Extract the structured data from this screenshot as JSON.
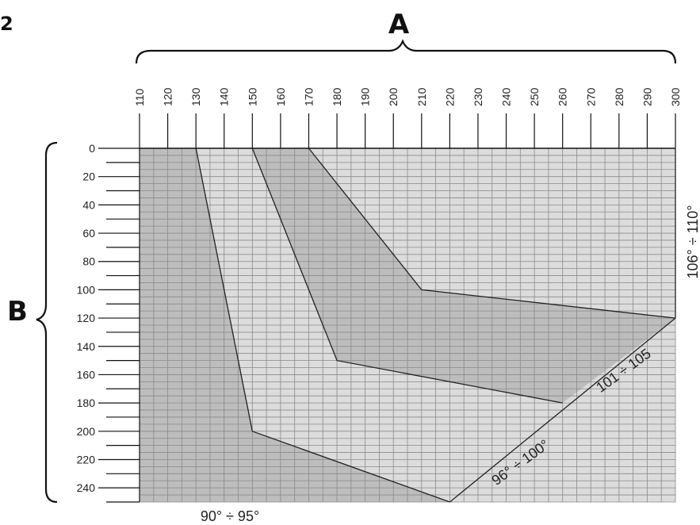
{
  "figure_number": "2",
  "chart_data": {
    "type": "area",
    "x_axis": {
      "letter": "A",
      "ticks": [
        110,
        120,
        130,
        140,
        150,
        160,
        170,
        180,
        190,
        200,
        210,
        220,
        230,
        240,
        250,
        260,
        270,
        280,
        290,
        300
      ],
      "range": [
        110,
        300
      ],
      "position": "top"
    },
    "y_axis": {
      "letter": "B",
      "ticks": [
        0,
        20,
        40,
        60,
        80,
        100,
        120,
        140,
        160,
        180,
        200,
        220,
        240
      ],
      "range": [
        0,
        250
      ],
      "inverted": true,
      "position": "left"
    },
    "grid": true,
    "zones": [
      {
        "label": "90° ÷ 95°",
        "fill": "#bdbdbd",
        "points": [
          [
            110,
            0
          ],
          [
            130,
            0
          ],
          [
            150,
            200
          ],
          [
            220,
            250
          ],
          [
            110,
            250
          ]
        ]
      },
      {
        "label": "96° ÷ 100°",
        "fill": "#dcdcdc",
        "points": [
          [
            130,
            0
          ],
          [
            150,
            0
          ],
          [
            180,
            150
          ],
          [
            260,
            180
          ],
          [
            300,
            120
          ],
          [
            300,
            250
          ],
          [
            220,
            250
          ],
          [
            150,
            200
          ]
        ]
      },
      {
        "label": "101 ÷ 105",
        "fill": "#bdbdbd",
        "points": [
          [
            150,
            0
          ],
          [
            170,
            0
          ],
          [
            210,
            100
          ],
          [
            300,
            120
          ],
          [
            260,
            180
          ],
          [
            180,
            150
          ]
        ]
      },
      {
        "label": "106° ÷ 110°",
        "fill": "#dcdcdc",
        "points": [
          [
            170,
            0
          ],
          [
            300,
            0
          ],
          [
            300,
            120
          ],
          [
            210,
            100
          ]
        ]
      }
    ],
    "grid_color": "#8a8a8a",
    "line_color": "#222222"
  }
}
